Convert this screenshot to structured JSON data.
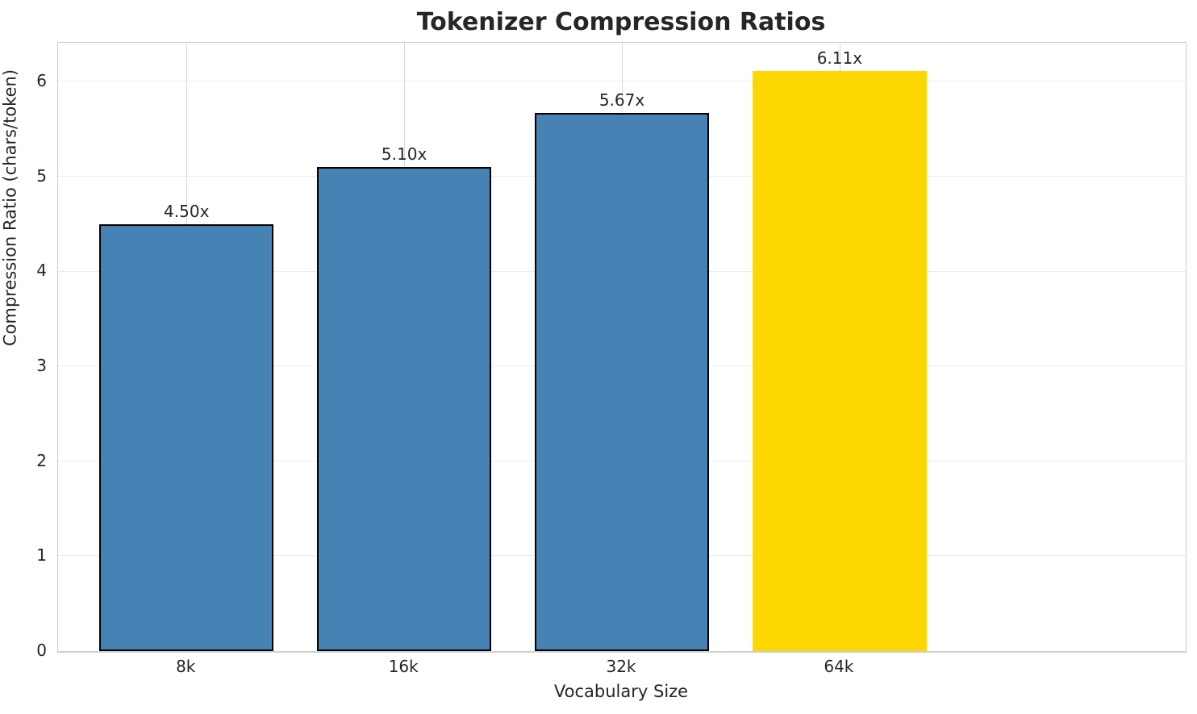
{
  "chart_data": {
    "type": "bar",
    "title": "Tokenizer Compression Ratios",
    "xlabel": "Vocabulary Size",
    "ylabel": "Compression Ratio (chars/token)",
    "categories": [
      "8k",
      "16k",
      "32k",
      "64k"
    ],
    "values": [
      4.5,
      5.1,
      5.67,
      6.11
    ],
    "value_labels": [
      "4.50x",
      "5.10x",
      "5.67x",
      "6.11x"
    ],
    "series": [
      {
        "name": "Compression Ratio",
        "values": [
          4.5,
          5.1,
          5.67,
          6.11
        ]
      }
    ],
    "ylim": [
      0,
      6.41
    ],
    "yticks": [
      0,
      1,
      2,
      3,
      4,
      5,
      6
    ],
    "grid": true,
    "legend": "none",
    "bar_colors": [
      "#4682b4",
      "#4682b4",
      "#4682b4",
      "#ffd700"
    ],
    "bar_edge_colors": [
      "#000000",
      "#000000",
      "#000000",
      "none"
    ],
    "highlight_category": "64k"
  }
}
